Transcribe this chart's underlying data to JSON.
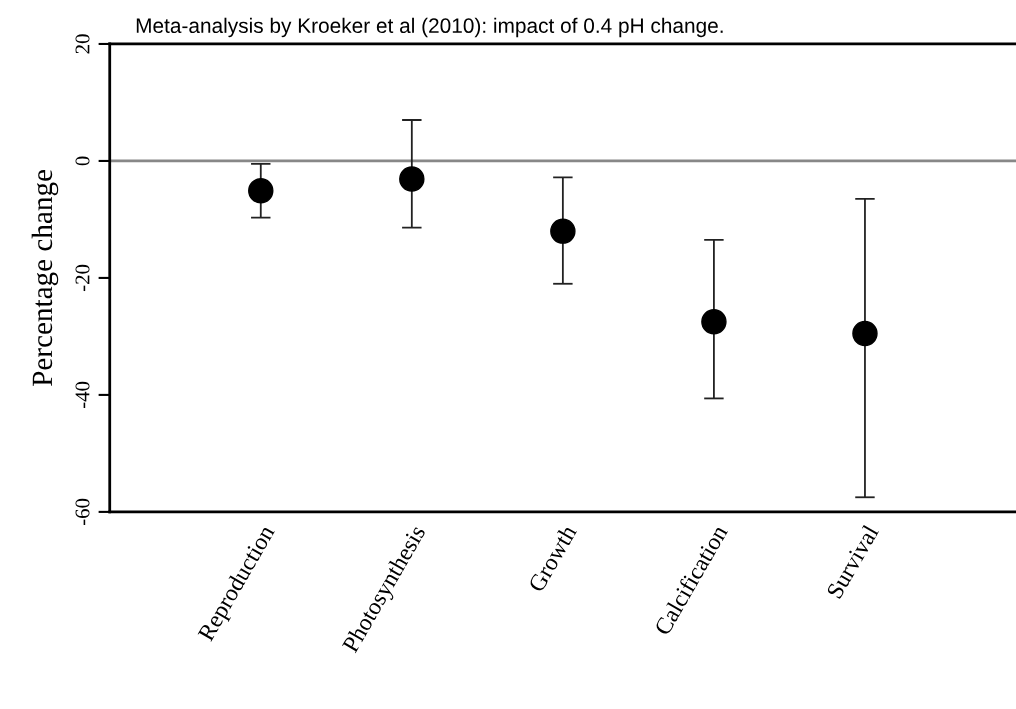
{
  "chart_data": {
    "type": "scatter",
    "title": "Meta-analysis by Kroeker et al (2010): impact of 0.4 pH change.",
    "ylabel": "Percentage change",
    "categories": [
      "Reproduction",
      "Photosynthesis",
      "Growth",
      "Calcification",
      "Survival"
    ],
    "values": [
      -5.1,
      -3.1,
      -12,
      -27.5,
      -29.5
    ],
    "errors": [
      [
        -9.7,
        -0.5
      ],
      [
        -11.4,
        7.0
      ],
      [
        -21,
        -2.8
      ],
      [
        -40.6,
        -13.5
      ],
      [
        -57.5,
        -6.5
      ]
    ],
    "color": "#000000",
    "marker": "circle",
    "ylim": [
      -60,
      20
    ],
    "yticks": [
      -60,
      -40,
      -20,
      0,
      20
    ],
    "ref_lines": [
      {
        "axis": "y",
        "value": 0,
        "color": "#888888",
        "line_style": "solid"
      }
    ]
  }
}
